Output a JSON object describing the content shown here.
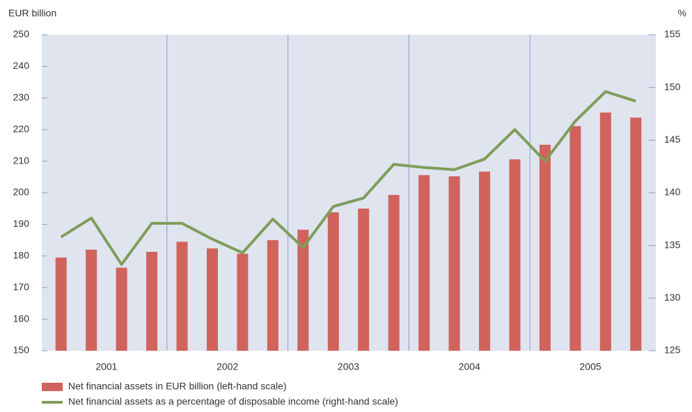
{
  "chart_data": {
    "type": "bar",
    "ylabel": "EUR billion",
    "y2label": "%",
    "categories": [
      null,
      null,
      null,
      null,
      null,
      null,
      null,
      null,
      null,
      null,
      null,
      null,
      null,
      null,
      null,
      null,
      null,
      null,
      null,
      null
    ],
    "year_labels": [
      "2001",
      "2002",
      "2003",
      "2004",
      "2005"
    ],
    "series": [
      {
        "name": "Net financial assets in EUR billion (left-hand scale)",
        "type": "bar",
        "color": "#d0635c",
        "values": [
          179.5,
          182,
          176.3,
          181.3,
          184.5,
          182.4,
          180.7,
          185,
          188.3,
          193.8,
          195,
          199.3,
          205.6,
          205.2,
          206.7,
          210.6,
          215.2,
          221.1,
          225.4,
          223.8
        ]
      },
      {
        "name": "Net financial assets as a percentage of disposable income (right-hand scale)",
        "type": "line",
        "axis": "y2",
        "color": "#7e9d5a",
        "values": [
          135.8,
          137.6,
          133.2,
          137.1,
          137.1,
          135.6,
          134.3,
          137.5,
          134.8,
          138.7,
          139.5,
          142.7,
          142.4,
          142.2,
          143.2,
          146.0,
          143.0,
          146.8,
          149.6,
          148.7
        ]
      }
    ],
    "ylim": [
      150,
      250
    ],
    "yticks": [
      150,
      160,
      170,
      180,
      190,
      200,
      210,
      220,
      230,
      240,
      250
    ],
    "y2lim": [
      125,
      155
    ],
    "y2ticks": [
      125,
      130,
      135,
      140,
      145,
      150,
      155
    ],
    "grid": false
  }
}
